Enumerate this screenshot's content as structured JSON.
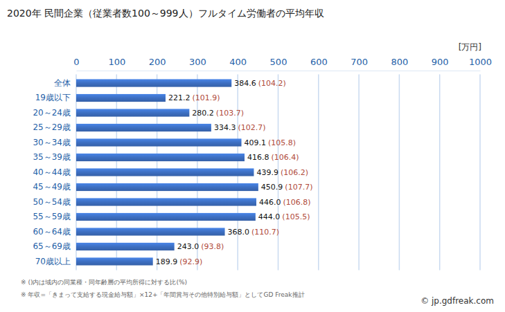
{
  "chart_data": {
    "type": "bar",
    "title": "2020年 民間企業（従業者数100～999人）フルタイム労働者の平均年収",
    "unit_label": "[万円]",
    "orientation": "horizontal",
    "categories": [
      "全体",
      "19歳以下",
      "20～24歳",
      "25～29歳",
      "30～34歳",
      "35～39歳",
      "40～44歳",
      "45～49歳",
      "50～54歳",
      "55～59歳",
      "60～64歳",
      "65～69歳",
      "70歳以上"
    ],
    "values": [
      384.6,
      221.2,
      280.2,
      334.3,
      409.1,
      416.8,
      439.9,
      450.9,
      446.0,
      444.0,
      368.0,
      243.0,
      189.9
    ],
    "value_labels": [
      "384.6",
      "221.2",
      "280.2",
      "334.3",
      "409.1",
      "416.8",
      "439.9",
      "450.9",
      "446.0",
      "444.0",
      "368.0",
      "243.0",
      "189.9"
    ],
    "ratio_labels": [
      "(104.2)",
      "(101.9)",
      "(103.7)",
      "(102.7)",
      "(105.8)",
      "(106.4)",
      "(106.2)",
      "(107.7)",
      "(106.8)",
      "(105.5)",
      "(110.7)",
      "(93.8)",
      "(92.9)"
    ],
    "color": "#3d6fc2",
    "xlim": [
      0,
      1000
    ],
    "xticks": [
      0,
      100,
      200,
      300,
      400,
      500,
      600,
      700,
      800,
      900,
      1000
    ],
    "grid": true,
    "data_labels": true,
    "notes": [
      "※ ()内は域内の同業種・同年齢層の平均所得に対する比(%)",
      "※ 年収=「きまって支給する現金給与額」×12+「年間賞与その他特別給与額」としてGD Freak推計"
    ],
    "source": "© jp.gdfreak.com"
  }
}
